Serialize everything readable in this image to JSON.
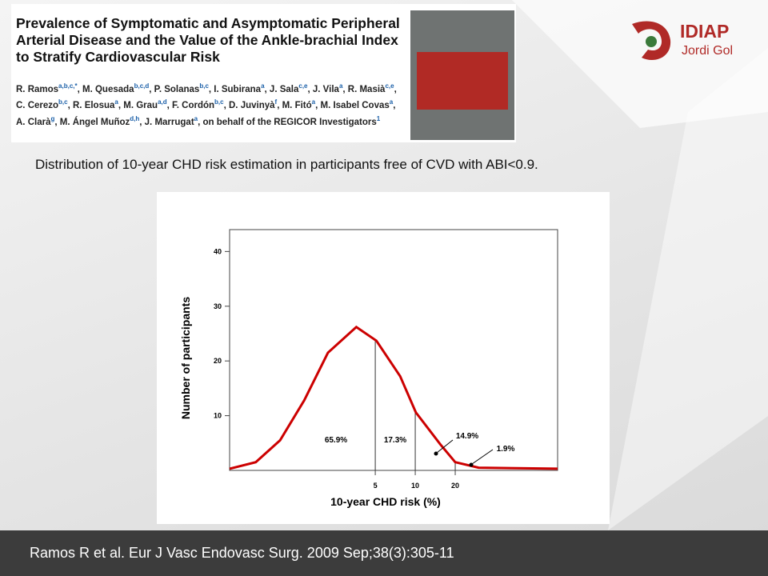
{
  "header": {
    "article_title": "Prevalence of Symptomatic and Asymptomatic Peripheral Arterial Disease and the Value of the Ankle-brachial Index to Stratify Cardiovascular Risk",
    "authors": [
      {
        "name": "R. Ramos",
        "sup": "a,b,c,*"
      },
      {
        "name": "M. Quesada",
        "sup": "b,c,d"
      },
      {
        "name": "P. Solanas",
        "sup": "b,c"
      },
      {
        "name": "I. Subirana",
        "sup": "a"
      },
      {
        "name": "J. Sala",
        "sup": "c,e"
      },
      {
        "name": "J. Vila",
        "sup": "a"
      },
      {
        "name": "R. Masià",
        "sup": "c,e"
      },
      {
        "name": "C. Cerezo",
        "sup": "b,c"
      },
      {
        "name": "R. Elosua",
        "sup": "a"
      },
      {
        "name": "M. Grau",
        "sup": "a,d"
      },
      {
        "name": "F. Cordón",
        "sup": "b,c"
      },
      {
        "name": "D. Juvinyà",
        "sup": "f"
      },
      {
        "name": "M. Fitó",
        "sup": "a"
      },
      {
        "name": "M. Isabel Covas",
        "sup": "a"
      },
      {
        "name": "A. Clarà",
        "sup": "g"
      },
      {
        "name": "M. Ángel Muñoz",
        "sup": "d,h"
      },
      {
        "name": "J. Marrugat",
        "sup": "a"
      }
    ],
    "authors_tail": "on behalf of the REGICOR Investigators",
    "authors_tail_sup": "1",
    "logo_main": "IDIAP",
    "logo_sub": "Jordi Gol"
  },
  "subtitle": "Distribution  of 10-year CHD risk estimation in participants  free of CVD with ABI<0.9.",
  "chart_data": {
    "type": "line",
    "x_label": "10-year CHD risk  (%)",
    "y_label": "Number of participants",
    "x": [
      0.4,
      0.63,
      0.96,
      1.46,
      2.2,
      3.6,
      5.1,
      7.7,
      10.1,
      15.4,
      20,
      30,
      118
    ],
    "values": [
      0.3,
      1.5,
      5.5,
      12.8,
      21.5,
      26.2,
      23.7,
      17.2,
      10.6,
      4.8,
      1.5,
      0.5,
      0.3
    ],
    "color": "#cc0000",
    "xscale": "log",
    "xlim": [
      0.4,
      118
    ],
    "xticks": [
      5,
      10,
      20
    ],
    "ylim": [
      0,
      44
    ],
    "yticks": [
      10,
      20,
      30,
      40
    ],
    "annotations": [
      "65.9%",
      "17.3%",
      "14.9%",
      "1.9%"
    ]
  },
  "footer": "Ramos R et al. Eur J Vasc Endovasc Surg. 2009 Sep;38(3):305-11"
}
